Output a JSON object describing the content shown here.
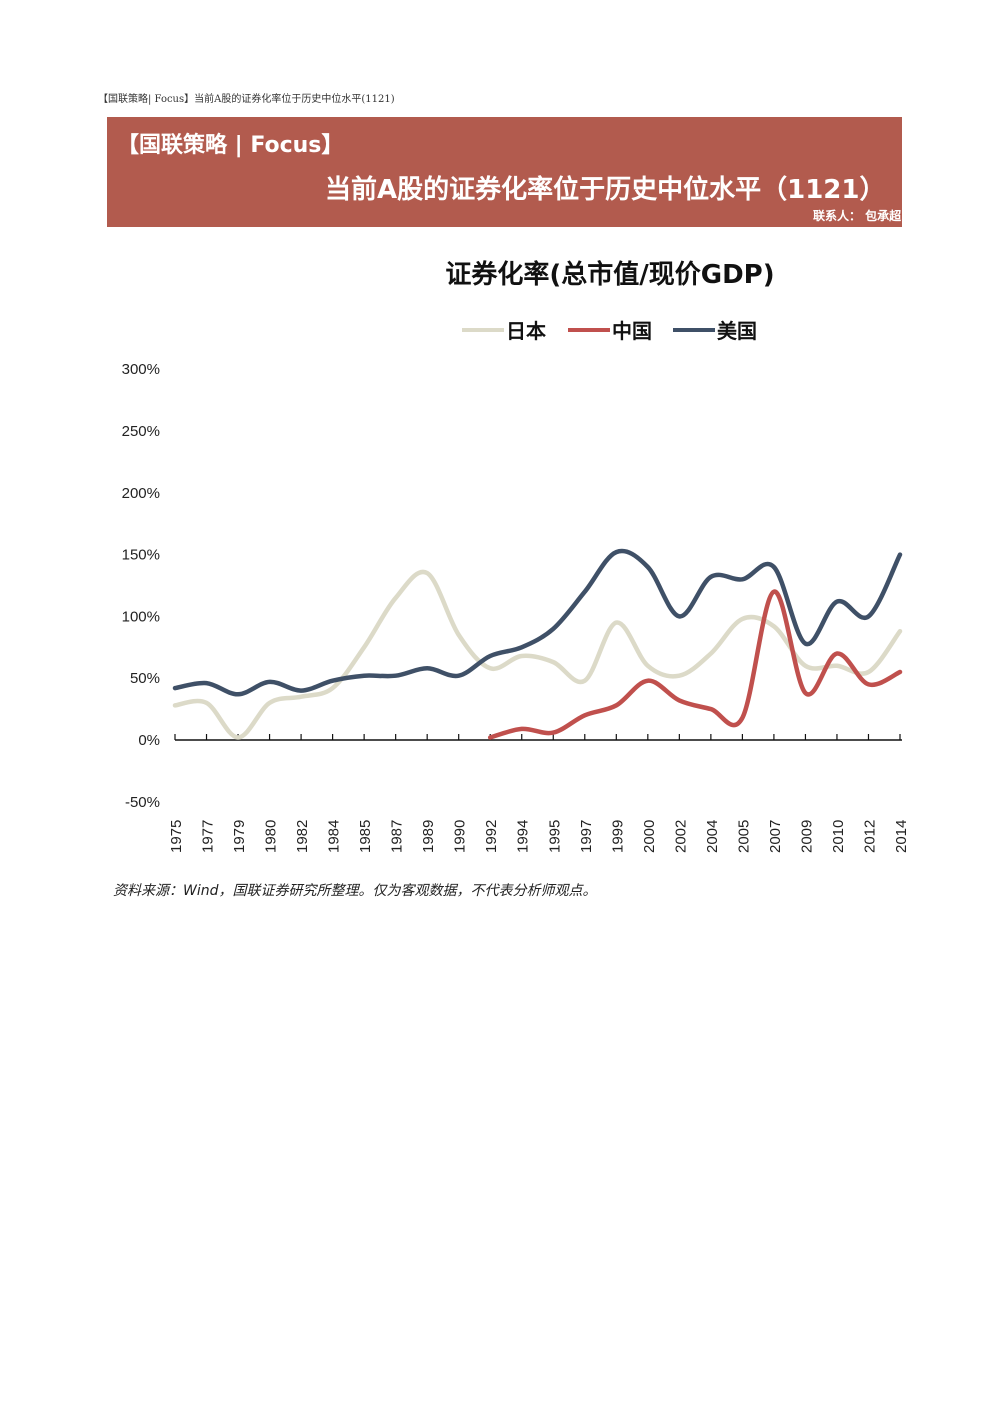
{
  "document": {
    "header": "【国联策略| Focus】当前A股的证券化率位于历史中位水平(1121)"
  },
  "banner": {
    "line1": "【国联策略 | Focus】",
    "line2": "当前A股的证券化率位于历史中位水平（1121）",
    "contact": "联系人： 包承超"
  },
  "chart_data": {
    "type": "line",
    "title": "证券化率(总市值/现价GDP)",
    "x_tick_labels": [
      "1975",
      "1977",
      "1979",
      "1980",
      "1982",
      "1984",
      "1985",
      "1987",
      "1989",
      "1990",
      "1992",
      "1994",
      "1995",
      "1997",
      "1999",
      "2000",
      "2002",
      "2004",
      "2005",
      "2007",
      "2009",
      "2010",
      "2012",
      "2014"
    ],
    "y_ticks": [
      "300%",
      "250%",
      "200%",
      "150%",
      "100%",
      "50%",
      "0%",
      "-50%"
    ],
    "ylim": [
      -50,
      300
    ],
    "x": [
      0,
      1,
      2,
      3,
      4,
      5,
      6,
      7,
      8,
      9,
      10,
      11,
      12,
      13,
      14,
      15,
      16,
      17,
      18,
      19,
      20,
      21,
      22,
      23
    ],
    "legend_position": "top",
    "grid": false,
    "series": [
      {
        "name": "日本",
        "color": "#dcdac8",
        "values": [
          28,
          30,
          2,
          30,
          35,
          42,
          75,
          115,
          135,
          85,
          58,
          68,
          63,
          48,
          95,
          60,
          52,
          70,
          98,
          92,
          60,
          60,
          55,
          88
        ]
      },
      {
        "name": "中国",
        "color": "#c0504d",
        "values": [
          null,
          null,
          null,
          null,
          null,
          null,
          null,
          null,
          null,
          null,
          2,
          9,
          6,
          20,
          28,
          48,
          32,
          25,
          18,
          120,
          38,
          70,
          45,
          55
        ]
      },
      {
        "name": "美国",
        "color": "#3f5067",
        "values": [
          42,
          46,
          37,
          47,
          40,
          48,
          52,
          52,
          58,
          52,
          68,
          75,
          90,
          120,
          152,
          140,
          100,
          132,
          130,
          140,
          78,
          112,
          100,
          150
        ]
      }
    ]
  },
  "source": "资料来源：Wind，国联证券研究所整理。仅为客观数据，不代表分析师观点。"
}
